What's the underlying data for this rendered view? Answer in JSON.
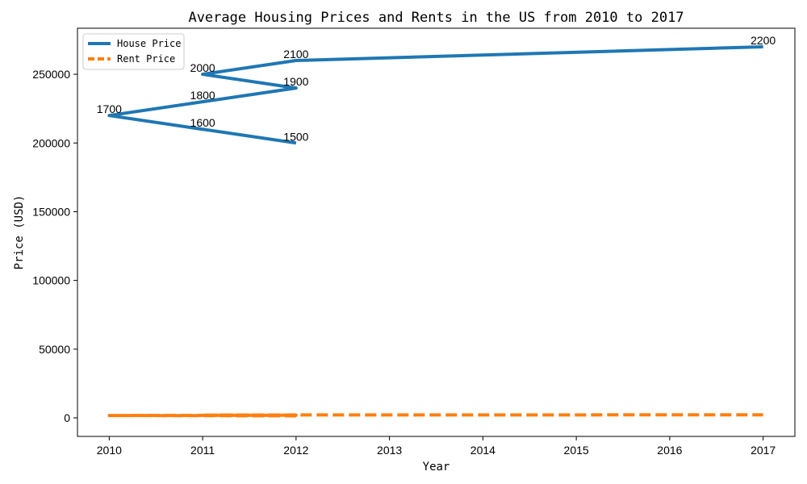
{
  "chart_data": {
    "type": "line",
    "title": "Average Housing Prices and Rents in the US from 2010 to 2017",
    "xlabel": "Year",
    "ylabel": "Price (USD)",
    "xlim": [
      2009.66,
      2017.34
    ],
    "ylim": [
      -13500,
      283500
    ],
    "x_ticks": [
      2010,
      2011,
      2012,
      2013,
      2014,
      2015,
      2016,
      2017
    ],
    "y_ticks": [
      0,
      50000,
      100000,
      150000,
      200000,
      250000
    ],
    "grid": false,
    "legend_position": "top-left",
    "series": [
      {
        "name": "House Price",
        "color": "#1f77b4",
        "style": "solid",
        "x": [
          2012,
          2011,
          2010,
          2011,
          2012,
          2011,
          2012,
          2017
        ],
        "y": [
          200000,
          210000,
          220000,
          230000,
          240000,
          250000,
          260000,
          270000
        ]
      },
      {
        "name": "Rent Price",
        "color": "#ff7f0e",
        "style": "dashed",
        "x": [
          2012,
          2011,
          2010,
          2011,
          2012,
          2011,
          2012,
          2017
        ],
        "y": [
          1500,
          1600,
          1700,
          1800,
          1900,
          2000,
          2100,
          2200
        ]
      }
    ],
    "annotations": [
      "1500",
      "1600",
      "1700",
      "1800",
      "1900",
      "2000",
      "2100",
      "2200"
    ]
  }
}
